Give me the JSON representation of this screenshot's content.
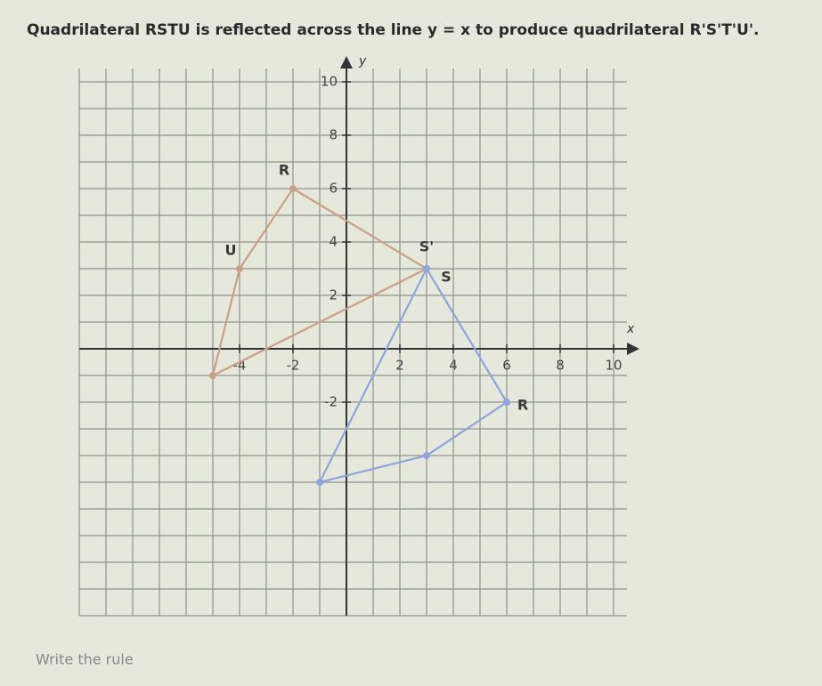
{
  "question": "Quadrilateral RSTU is reflected across the line y = x to produce quadrilateral R'S'T'U'.",
  "graph": {
    "x_label": "x",
    "y_label": "y",
    "xlim": [
      -10,
      10.5
    ],
    "ylim": [
      -10,
      10.5
    ],
    "xticks": [
      -4,
      -2,
      2,
      4,
      6,
      8,
      10
    ],
    "yticks": [
      -2,
      2,
      4,
      6,
      8,
      10
    ],
    "shapes": [
      {
        "color": "#c7a189",
        "points": [
          {
            "label": "R",
            "x": -2,
            "y": 6
          },
          {
            "label": "S",
            "x": 3,
            "y": 3
          },
          {
            "label": null,
            "x": -5,
            "y": -1
          },
          {
            "label": "U",
            "x": -4,
            "y": 3
          }
        ]
      },
      {
        "color": "#8fa4dc",
        "points": [
          {
            "label": "R",
            "x": 6,
            "y": -2
          },
          {
            "label": "S'",
            "x": 3,
            "y": 3
          },
          {
            "label": null,
            "x": -1,
            "y": -5
          },
          {
            "label": null,
            "x": 3,
            "y": -4
          }
        ]
      }
    ]
  },
  "footer": "Write the rule"
}
